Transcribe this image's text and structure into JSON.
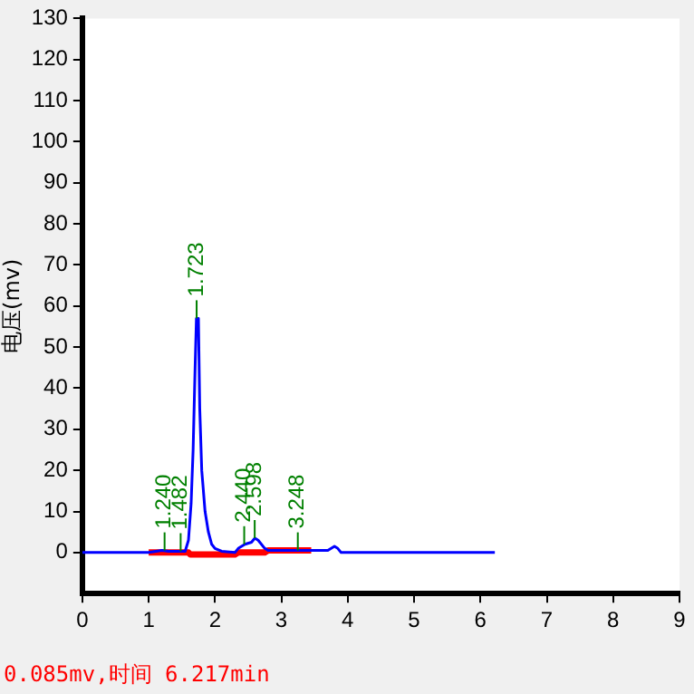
{
  "chart_data": {
    "type": "line",
    "ylabel": "电压(mv)",
    "xlim": [
      0,
      9
    ],
    "xticks": [
      0,
      1,
      2,
      3,
      4,
      5,
      6,
      7,
      8,
      9
    ],
    "ylim": [
      -10,
      130
    ],
    "yticks": [
      0,
      10,
      20,
      30,
      40,
      50,
      60,
      70,
      80,
      90,
      100,
      110,
      120,
      130
    ],
    "grid": false,
    "legend": false,
    "marker": "none",
    "line_style": "solid",
    "series": [
      {
        "color": "#0000ff",
        "x": [
          0,
          1.0,
          1.2,
          1.3,
          1.55,
          1.6,
          1.64,
          1.67,
          1.7,
          1.72,
          1.75,
          1.77,
          1.8,
          1.85,
          1.9,
          1.95,
          2.0,
          2.1,
          2.3,
          2.35,
          2.45,
          2.55,
          2.6,
          2.65,
          2.75,
          2.8,
          3.7,
          3.8,
          3.85,
          3.9,
          6.217
        ],
        "values": [
          0,
          0,
          0.5,
          0.3,
          0.3,
          3,
          12,
          25,
          45,
          57,
          57,
          35,
          20,
          10,
          5,
          2,
          1,
          0.3,
          0,
          1,
          2,
          2.5,
          3.5,
          3,
          1,
          0.5,
          0.5,
          1.5,
          1,
          0,
          0
        ]
      },
      {
        "color": "#ff0000",
        "x": [
          1.0,
          1.6,
          1.63,
          2.3,
          2.35,
          2.75,
          2.8,
          3.45
        ],
        "values": [
          0,
          0,
          -0.5,
          -0.5,
          0,
          0,
          0.5,
          0.5
        ]
      }
    ],
    "annotations": [
      {
        "text": "1.240",
        "x": 1.24,
        "y": 0.5
      },
      {
        "text": "1.482",
        "x": 1.482,
        "y": 0.3
      },
      {
        "text": "1.723",
        "x": 1.723,
        "y": 57
      },
      {
        "text": "2.440",
        "x": 2.44,
        "y": 2
      },
      {
        "text": "2.598",
        "x": 2.598,
        "y": 3.5
      },
      {
        "text": "3.248",
        "x": 3.248,
        "y": 0.5
      },
      "0.085mv,时间 6.217min"
    ]
  }
}
